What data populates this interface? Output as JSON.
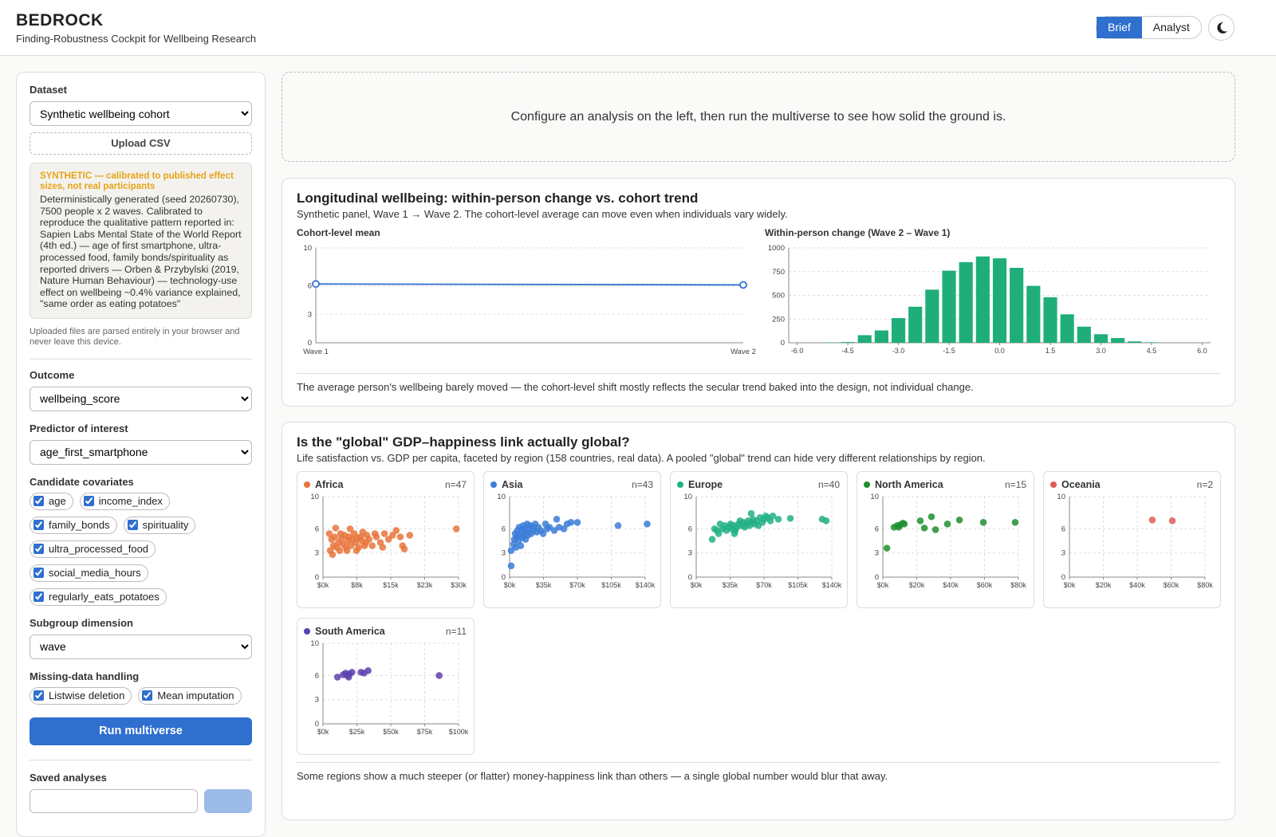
{
  "header": {
    "title": "BEDROCK",
    "subtitle": "Finding-Robustness Cockpit for Wellbeing Research",
    "modes": [
      "Brief",
      "Analyst"
    ]
  },
  "sidebar": {
    "dataset_label": "Dataset",
    "dataset_value": "Synthetic wellbeing cohort",
    "upload": "Upload CSV",
    "notice_title": "SYNTHETIC — calibrated to published effect sizes, not real participants",
    "notice_text": "Deterministically generated (seed 20260730), 7500 people x 2 waves. Calibrated to reproduce the qualitative pattern reported in: Sapien Labs Mental State of the World Report (4th ed.) — age of first smartphone, ultra-processed food, family bonds/spirituality as reported drivers — Orben & Przybylski (2019, Nature Human Behaviour) — technology-use effect on wellbeing ~0.4% variance explained, \"same order as eating potatoes\"",
    "privacy_note": "Uploaded files are parsed entirely in your browser and never leave this device.",
    "outcome_label": "Outcome",
    "outcome_value": "wellbeing_score",
    "predictor_label": "Predictor of interest",
    "predictor_value": "age_first_smartphone",
    "covariates_label": "Candidate covariates",
    "covariates": [
      "age",
      "income_index",
      "family_bonds",
      "spirituality",
      "ultra_processed_food",
      "social_media_hours",
      "regularly_eats_potatoes"
    ],
    "subgroup_label": "Subgroup dimension",
    "subgroup_value": "wave",
    "missing_label": "Missing-data handling",
    "missing": [
      "Listwise deletion",
      "Mean imputation"
    ],
    "run_button": "Run multiverse",
    "saved_label": "Saved analyses"
  },
  "placeholder": "Configure an analysis on the left, then run the multiverse to see how solid the ground is.",
  "longitudinal": {
    "title": "Longitudinal wellbeing: within-person change vs. cohort trend",
    "subtitle": "Synthetic panel, Wave 1 → Wave 2. The cohort-level average can move even when individuals vary widely.",
    "footnote": "The average person's wellbeing barely moved — the cohort-level shift mostly reflects the secular trend baked into the design, not individual change."
  },
  "gdp": {
    "title": "Is the \"global\" GDP–happiness link actually global?",
    "subtitle": "Life satisfaction vs. GDP per capita, faceted by region (158 countries, real data). A pooled \"global\" trend can hide very different relationships by region.",
    "footnote": "Some regions show a much steeper (or flatter) money-happiness link than others — a single global number would blur that away."
  },
  "chart_data": [
    {
      "type": "line",
      "title": "Cohort-level mean",
      "categories": [
        "Wave 1",
        "Wave 2"
      ],
      "values": [
        6.2,
        6.1
      ],
      "color": "#2f6fce",
      "ylim": [
        0,
        10
      ],
      "yticks": [
        0,
        3,
        6,
        10
      ],
      "grid": true
    },
    {
      "type": "histogram",
      "title": "Within-person change (Wave 2 – Wave 1)",
      "color": "#1fae7a",
      "bins": [
        -6.25,
        -5.75,
        -5.25,
        -4.75,
        -4.25,
        -3.75,
        -3.25,
        -2.75,
        -2.25,
        -1.75,
        -1.25,
        -0.75,
        -0.25,
        0.25,
        0.75,
        1.25,
        1.75,
        2.25,
        2.75,
        3.25,
        3.75,
        4.25,
        4.75,
        5.25,
        5.75,
        6.25
      ],
      "counts": [
        0,
        0,
        3,
        8,
        80,
        130,
        260,
        380,
        560,
        760,
        850,
        910,
        890,
        790,
        600,
        480,
        300,
        170,
        90,
        50,
        15,
        5,
        0,
        0,
        0
      ],
      "xlim": [
        -6.25,
        6.25
      ],
      "xticks": [
        {
          "value": -6,
          "label": "-6.0"
        },
        -4.5,
        {
          "value": -3,
          "label": "-3.0"
        },
        -1.5,
        {
          "value": 0,
          "label": "0.0"
        },
        1.5,
        {
          "value": 3,
          "label": "3.0"
        },
        4.5,
        {
          "value": 6,
          "label": "6.0"
        }
      ],
      "ylim": [
        0,
        1000
      ],
      "yticks": [
        0,
        250,
        500,
        750,
        1000
      ],
      "grid": true
    },
    {
      "type": "scatter",
      "title": "Africa",
      "n_label": "n=47",
      "color": "#e8743b",
      "xlim": [
        0,
        30000
      ],
      "xticks": [
        {
          "value": 0,
          "label": "$0k"
        },
        {
          "value": 7500,
          "label": "$8k"
        },
        {
          "value": 15000,
          "label": "$15k"
        },
        {
          "value": 22500,
          "label": "$23k"
        },
        {
          "value": 30000,
          "label": "$30k"
        }
      ],
      "ylim": [
        0,
        10
      ],
      "yticks": [
        0,
        3,
        6,
        10
      ],
      "grid": true,
      "x": [
        1400,
        1600,
        1900,
        2300,
        2600,
        3000,
        3400,
        3700,
        4100,
        4400,
        4800,
        5100,
        5500,
        5800,
        6200,
        6500,
        6900,
        7200,
        7600,
        7900,
        8300,
        8600,
        9200,
        9700,
        10200,
        10900,
        11800,
        12700,
        13600,
        14500,
        15400,
        16200,
        17100,
        17600,
        18000,
        19200,
        29500,
        2100,
        2800,
        3900,
        5300,
        7400,
        9500,
        11500,
        13200,
        6000,
        8800
      ],
      "values": [
        5.4,
        3.3,
        4.7,
        3.9,
        5.0,
        3.7,
        4.3,
        3.3,
        4.8,
        4.1,
        5.2,
        3.7,
        4.5,
        5.0,
        3.9,
        4.7,
        5.4,
        4.3,
        4.9,
        3.7,
        5.0,
        4.5,
        3.9,
        5.2,
        4.7,
        3.9,
        5.0,
        4.3,
        5.4,
        4.7,
        5.2,
        5.8,
        5.0,
        3.9,
        3.5,
        5.2,
        6.0,
        2.8,
        6.1,
        5.4,
        3.3,
        3.3,
        4.3,
        5.4,
        3.7,
        6.0,
        5.6
      ]
    },
    {
      "type": "scatter",
      "title": "Asia",
      "n_label": "n=43",
      "color": "#3b7dd8",
      "xlim": [
        0,
        140000
      ],
      "xticks": [
        {
          "value": 0,
          "label": "$0k"
        },
        {
          "value": 35000,
          "label": "$35k"
        },
        {
          "value": 70000,
          "label": "$70k"
        },
        {
          "value": 105000,
          "label": "$105k"
        },
        {
          "value": 140000,
          "label": "$140k"
        }
      ],
      "ylim": [
        0,
        10
      ],
      "yticks": [
        0,
        3,
        6,
        10
      ],
      "grid": true,
      "x": [
        1600,
        1600,
        4100,
        4900,
        5800,
        6600,
        7400,
        8200,
        9100,
        9900,
        10700,
        11500,
        12400,
        13200,
        14000,
        14800,
        15600,
        16500,
        17300,
        18100,
        18900,
        19800,
        21400,
        22200,
        23900,
        24700,
        26400,
        28000,
        29600,
        32100,
        34600,
        37100,
        38700,
        41200,
        46100,
        48600,
        51100,
        56000,
        59300,
        63400,
        70000,
        112000,
        142000
      ],
      "values": [
        1.4,
        3.3,
        4.1,
        4.7,
        5.4,
        3.7,
        5.0,
        5.8,
        4.5,
        6.2,
        5.2,
        3.9,
        5.8,
        4.9,
        6.4,
        5.4,
        6.0,
        4.7,
        5.6,
        6.6,
        5.2,
        6.0,
        6.4,
        5.4,
        6.2,
        5.8,
        6.6,
        5.6,
        6.2,
        5.8,
        5.4,
        6.6,
        6.0,
        6.2,
        5.8,
        7.2,
        6.2,
        6.0,
        6.6,
        6.8,
        6.8,
        6.4,
        6.6
      ]
    },
    {
      "type": "scatter",
      "title": "Europe",
      "n_label": "n=40",
      "color": "#22b085",
      "xlim": [
        0,
        140000
      ],
      "xticks": [
        {
          "value": 0,
          "label": "$0k"
        },
        {
          "value": 35000,
          "label": "$35k"
        },
        {
          "value": 70000,
          "label": "$70k"
        },
        {
          "value": 105000,
          "label": "$105k"
        },
        {
          "value": 140000,
          "label": "$140k"
        }
      ],
      "ylim": [
        0,
        10
      ],
      "yticks": [
        0,
        3,
        6,
        10
      ],
      "grid": true,
      "x": [
        16500,
        18900,
        21400,
        24700,
        27200,
        29600,
        31300,
        33800,
        35400,
        37100,
        38700,
        40400,
        42000,
        43600,
        45300,
        46900,
        48600,
        50200,
        51900,
        53500,
        55200,
        56800,
        58500,
        60100,
        62600,
        64200,
        65900,
        68400,
        70000,
        71700,
        56800,
        74100,
        76600,
        79100,
        84800,
        97200,
        130100,
        134200,
        23100,
        39500
      ],
      "values": [
        4.7,
        6.0,
        5.8,
        6.6,
        6.0,
        6.4,
        5.8,
        6.2,
        6.6,
        6.0,
        6.4,
        5.8,
        6.2,
        6.6,
        7.0,
        6.4,
        6.8,
        6.2,
        6.6,
        7.0,
        6.4,
        6.8,
        7.2,
        6.6,
        7.0,
        6.4,
        7.4,
        6.8,
        7.2,
        7.6,
        7.9,
        7.4,
        7.0,
        7.6,
        7.2,
        7.3,
        7.2,
        7.0,
        5.4,
        5.4
      ]
    },
    {
      "type": "scatter",
      "title": "North America",
      "n_label": "n=15",
      "color": "#1e8f2e",
      "xlim": [
        0,
        80000
      ],
      "xticks": [
        {
          "value": 0,
          "label": "$0k"
        },
        {
          "value": 20000,
          "label": "$20k"
        },
        {
          "value": 40000,
          "label": "$40k"
        },
        {
          "value": 60000,
          "label": "$60k"
        },
        {
          "value": 80000,
          "label": "$80k"
        }
      ],
      "ylim": [
        0,
        10
      ],
      "yticks": [
        0,
        3,
        6,
        10
      ],
      "grid": true,
      "x": [
        2400,
        6600,
        8500,
        10400,
        11800,
        12700,
        22100,
        24500,
        28700,
        31100,
        38100,
        45200,
        59300,
        78100,
        9400
      ],
      "values": [
        3.6,
        6.2,
        6.4,
        6.5,
        6.7,
        6.6,
        7.0,
        6.1,
        7.5,
        5.9,
        6.6,
        7.1,
        6.8,
        6.8,
        6.2
      ]
    },
    {
      "type": "scatter",
      "title": "Oceania",
      "n_label": "n=2",
      "color": "#e05a5a",
      "xlim": [
        0,
        80000
      ],
      "xticks": [
        {
          "value": 0,
          "label": "$0k"
        },
        {
          "value": 20000,
          "label": "$20k"
        },
        {
          "value": 40000,
          "label": "$40k"
        },
        {
          "value": 60000,
          "label": "$60k"
        },
        {
          "value": 80000,
          "label": "$80k"
        }
      ],
      "ylim": [
        0,
        10
      ],
      "yticks": [
        0,
        3,
        6,
        10
      ],
      "grid": true,
      "x": [
        48900,
        60700
      ],
      "values": [
        7.1,
        7.0
      ]
    },
    {
      "type": "scatter",
      "title": "South America",
      "n_label": "n=11",
      "color": "#5e3fae",
      "xlim": [
        0,
        100000
      ],
      "xticks": [
        {
          "value": 0,
          "label": "$0k"
        },
        {
          "value": 25000,
          "label": "$25k"
        },
        {
          "value": 50000,
          "label": "$50k"
        },
        {
          "value": 75000,
          "label": "$75k"
        },
        {
          "value": 100000,
          "label": "$100k"
        }
      ],
      "ylim": [
        0,
        10
      ],
      "yticks": [
        0,
        3,
        6,
        10
      ],
      "grid": true,
      "x": [
        10700,
        14900,
        16700,
        17900,
        19600,
        21400,
        19000,
        28000,
        30300,
        33300,
        85700
      ],
      "values": [
        5.8,
        6.1,
        6.3,
        6.0,
        6.2,
        6.4,
        5.8,
        6.4,
        6.3,
        6.6,
        6.0
      ]
    }
  ]
}
